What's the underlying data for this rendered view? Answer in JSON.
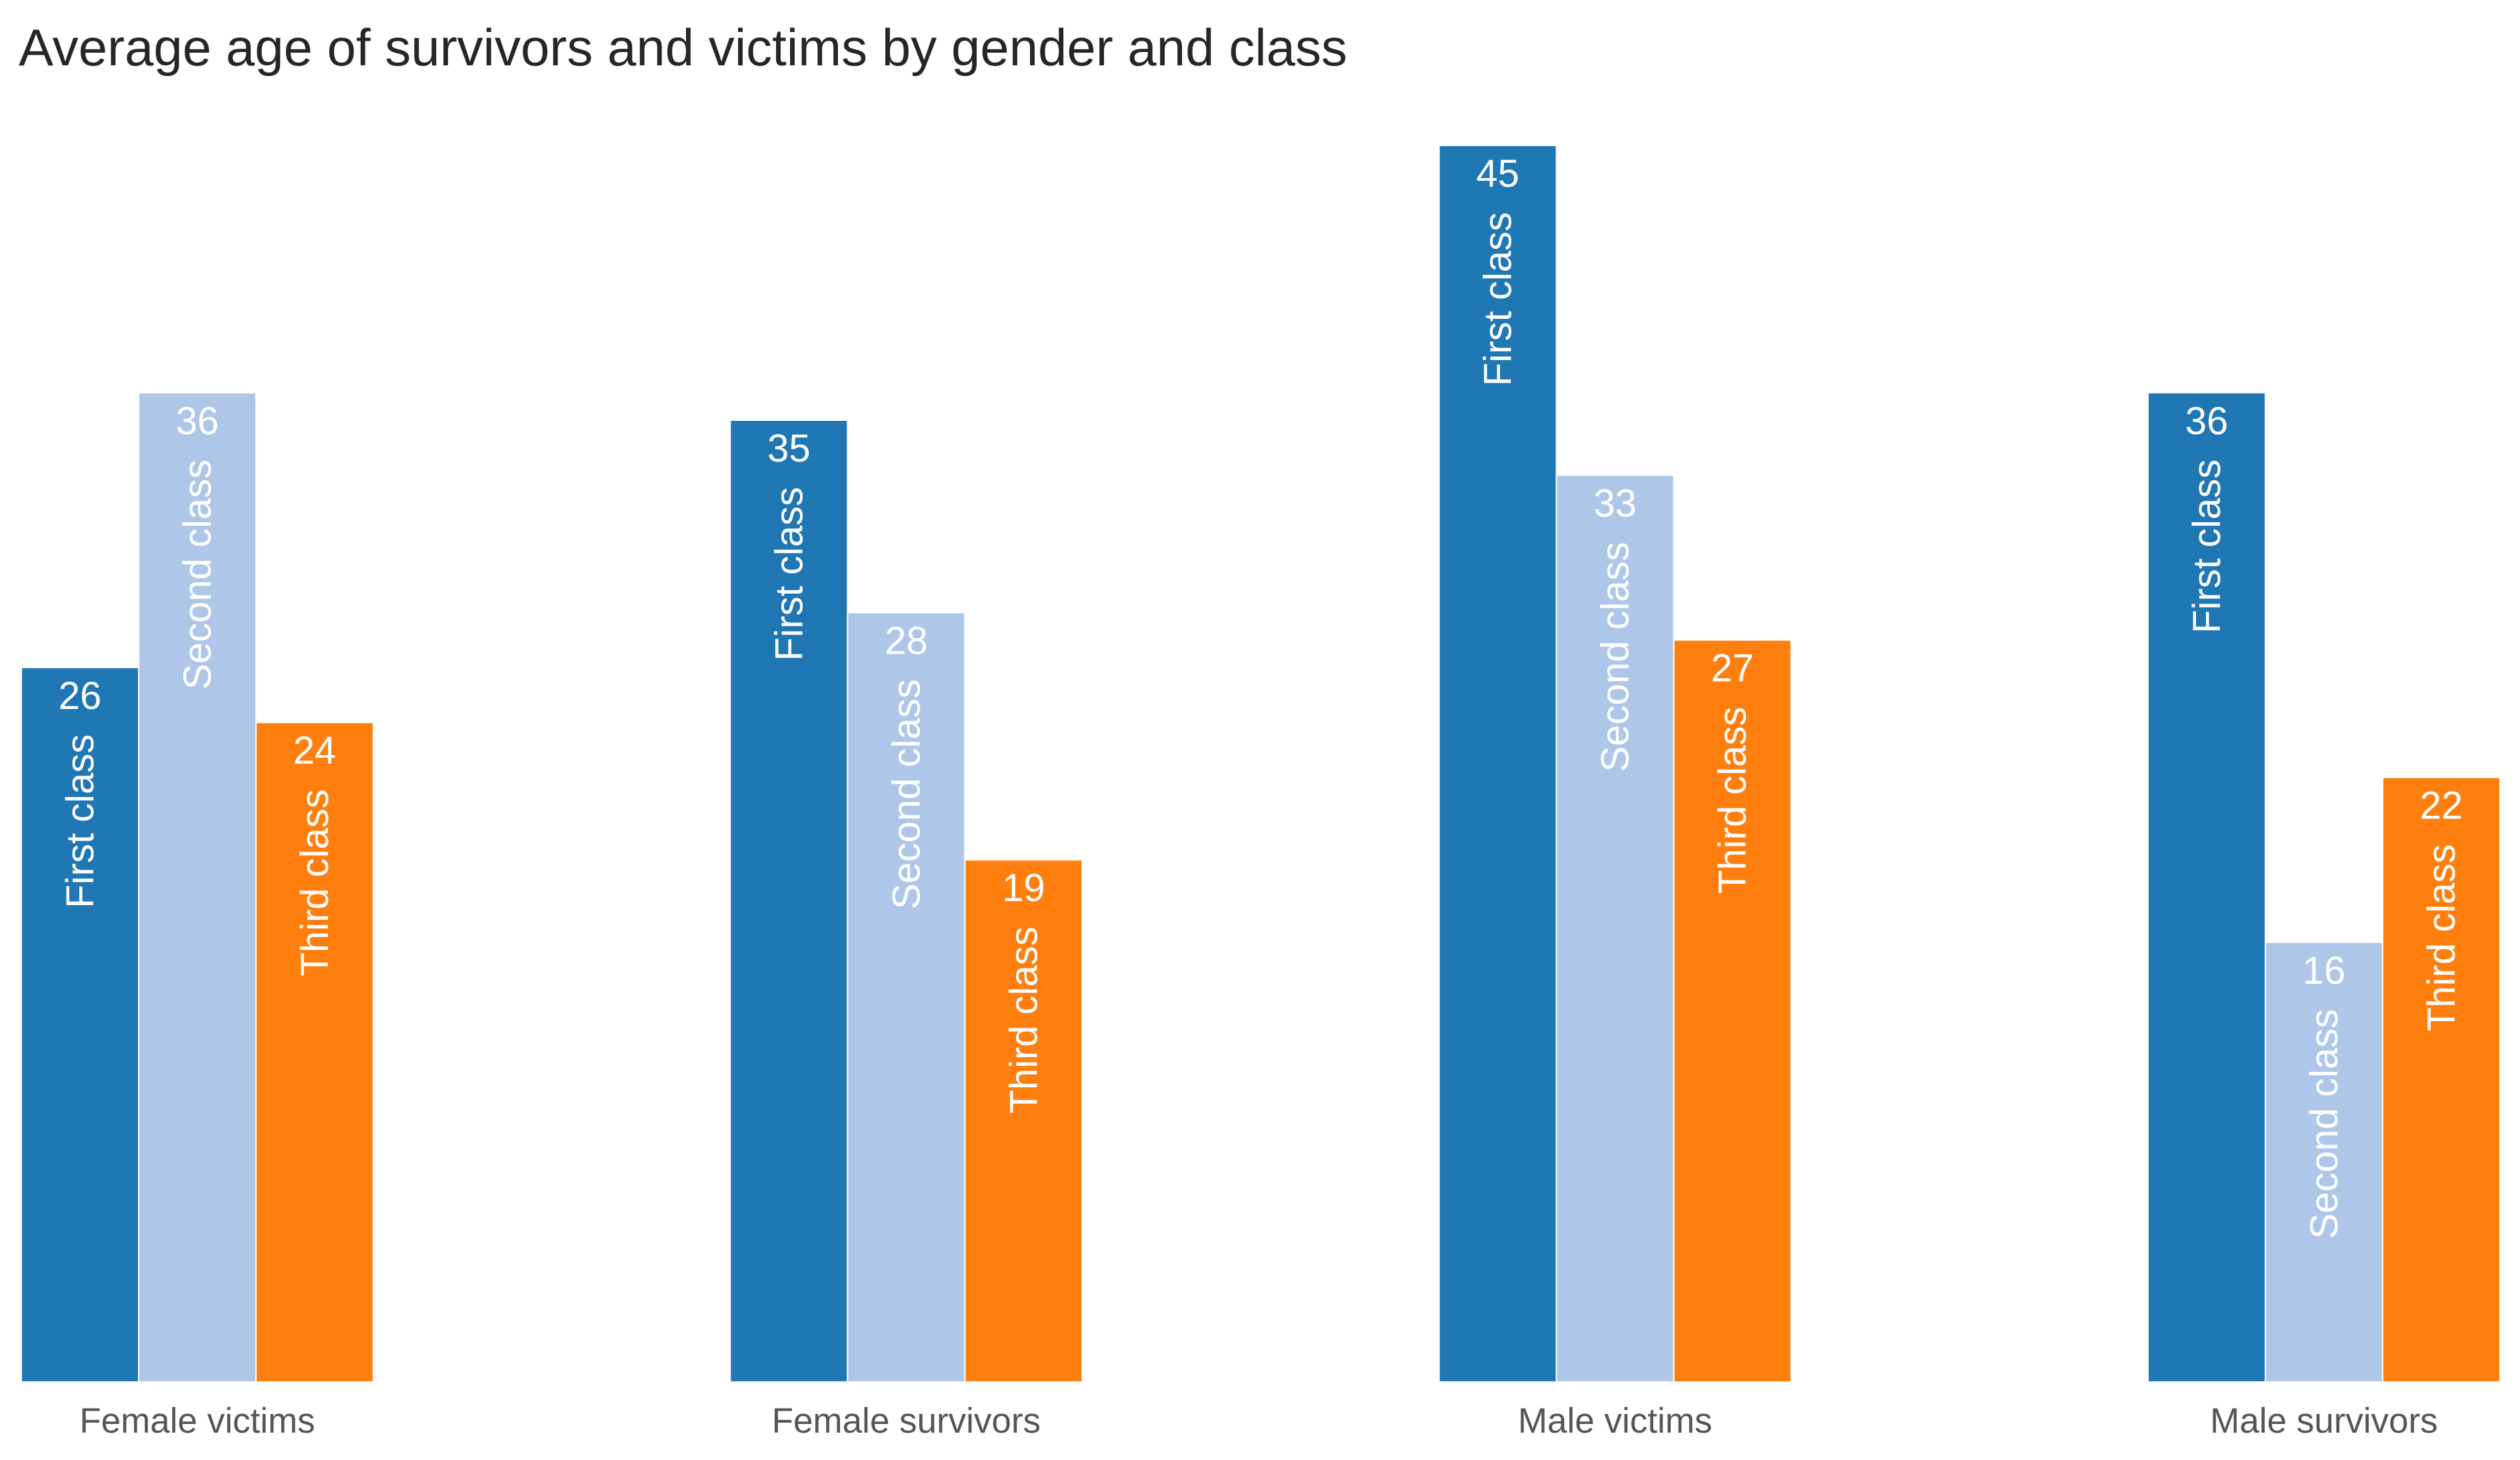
{
  "chart_data": {
    "type": "bar",
    "title": "Average age of survivors and victims by gender and class",
    "xlabel": "",
    "ylabel": "",
    "ylim": [
      0,
      45
    ],
    "grid": false,
    "legend": "none",
    "categories": [
      "Female victims",
      "Female survivors",
      "Male victims",
      "Male survivors"
    ],
    "series": [
      {
        "name": "First class",
        "color": "#1f77b4",
        "label_color": "#ffffff",
        "values": [
          26,
          35,
          45,
          36
        ]
      },
      {
        "name": "Second class",
        "color": "#aec7e8",
        "label_color": "#ffffff",
        "values": [
          36,
          28,
          33,
          16
        ]
      },
      {
        "name": "Third class",
        "color": "#ff7f0e",
        "label_color": "#ffffff",
        "values": [
          24,
          19,
          27,
          22
        ]
      }
    ],
    "value_labels": [
      [
        "26",
        "36",
        "24"
      ],
      [
        "35",
        "28",
        "19"
      ],
      [
        "45",
        "33",
        "27"
      ],
      [
        "36",
        "16",
        "22"
      ]
    ]
  }
}
